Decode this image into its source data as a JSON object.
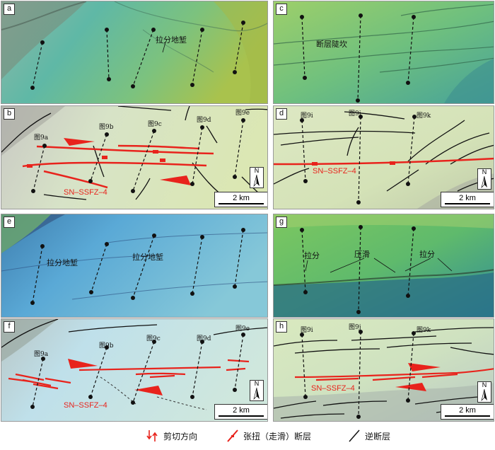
{
  "panels": {
    "a": {
      "label": "a",
      "annotations": [
        "拉分地堑"
      ]
    },
    "b": {
      "label": "b",
      "profile_labels": [
        "图9a",
        "图9b",
        "图9c",
        "图9d",
        "图9e"
      ],
      "fault_label": "SN–SSFZ–4",
      "north": "N",
      "scale": "2 km"
    },
    "c": {
      "label": "c",
      "annotations": [
        "断层陡坎"
      ]
    },
    "d": {
      "label": "d",
      "profile_labels": [
        "图9i",
        "图9j",
        "图9k"
      ],
      "fault_label": "SN–SSFZ–4",
      "north": "N",
      "scale": "2 km"
    },
    "e": {
      "label": "e",
      "annotations": [
        "拉分地堑",
        "拉分地堑"
      ]
    },
    "f": {
      "label": "f",
      "profile_labels": [
        "图9a",
        "图9b",
        "图9c",
        "图9d",
        "图9e"
      ],
      "fault_label": "SN–SSFZ–4",
      "north": "N",
      "scale": "2 km"
    },
    "g": {
      "label": "g",
      "annotations": [
        "拉分",
        "压滑",
        "拉分"
      ]
    },
    "h": {
      "label": "h",
      "profile_labels": [
        "图9i",
        "图9j",
        "图9k"
      ],
      "fault_label": "SN–SSFZ–4",
      "north": "N",
      "scale": "2 km"
    }
  },
  "legend": {
    "shear": "剪切方向",
    "transtension": "张扭（走滑）断层",
    "reverse": "逆断层"
  },
  "colors": {
    "fault_red": "#e8231c",
    "line_black": "#111111"
  }
}
